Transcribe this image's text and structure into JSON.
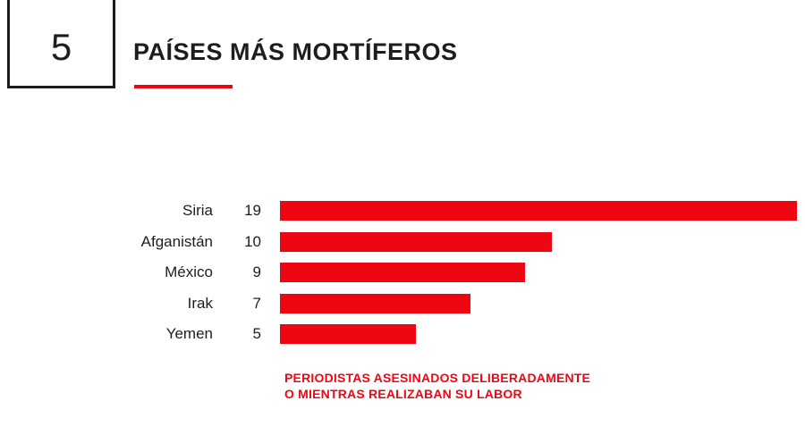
{
  "page": {
    "section_number": "5",
    "title": "PAÍSES MÁS MORTÍFEROS"
  },
  "colors": {
    "accent_red": "#ee0613",
    "text_black": "#1d1d1b"
  },
  "chart_data": {
    "type": "bar",
    "orientation": "horizontal",
    "categories": [
      "Siria",
      "Afganistán",
      "México",
      "Irak",
      "Yemen"
    ],
    "values": [
      19,
      10,
      9,
      7,
      5
    ],
    "title": "PAÍSES MÁS MORTÍFEROS",
    "xlabel": "",
    "ylabel": "",
    "xlim": [
      0,
      19
    ],
    "grid": false,
    "legend": "none",
    "value_labels_shown": true,
    "bar_color": "#ee0613",
    "caption_line1": "PERIODISTAS ASESINADOS DELIBERADAMENTE",
    "caption_line2": "O MIENTRAS REALIZABAN SU LABOR"
  }
}
